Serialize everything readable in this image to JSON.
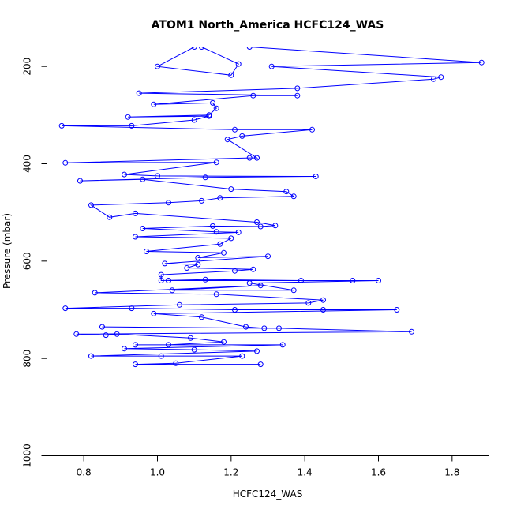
{
  "chart_data": {
    "type": "scatter",
    "title": "ATOM1 North_America HCFC124_WAS",
    "xlabel": "HCFC124_WAS",
    "ylabel": "Pressure (mbar)",
    "xlim": [
      0.7,
      1.9
    ],
    "ylim": [
      1000,
      160
    ],
    "y_reversed": true,
    "x_ticks": [
      0.8,
      1.0,
      1.2,
      1.4,
      1.6,
      1.8
    ],
    "x_tick_labels": [
      "0.8",
      "1.0",
      "1.2",
      "1.4",
      "1.6",
      "1.8"
    ],
    "y_ticks": [
      200,
      400,
      600,
      800,
      1000
    ],
    "y_tick_labels": [
      "200",
      "400",
      "600",
      "800",
      "1000"
    ],
    "grid": false,
    "color": "#0000ff",
    "series": [
      {
        "points": [
          [
            1.1,
            160
          ],
          [
            1.0,
            200
          ],
          [
            1.2,
            218
          ],
          [
            1.22,
            195
          ],
          [
            1.12,
            160
          ],
          [
            1.25,
            160
          ],
          [
            1.88,
            192
          ],
          [
            1.31,
            200
          ],
          [
            1.77,
            222
          ],
          [
            1.75,
            226
          ],
          [
            1.38,
            245
          ],
          [
            0.95,
            255
          ],
          [
            1.38,
            260
          ],
          [
            1.26,
            260
          ],
          [
            0.99,
            278
          ],
          [
            1.15,
            275
          ],
          [
            1.16,
            286
          ],
          [
            1.14,
            300
          ],
          [
            0.92,
            304
          ],
          [
            1.14,
            302
          ],
          [
            1.1,
            310
          ],
          [
            0.93,
            322
          ],
          [
            0.74,
            322
          ],
          [
            1.21,
            330
          ],
          [
            1.42,
            330
          ],
          [
            1.23,
            343
          ],
          [
            1.19,
            350
          ],
          [
            1.27,
            388
          ],
          [
            1.25,
            388
          ],
          [
            0.75,
            398
          ],
          [
            1.16,
            397
          ],
          [
            0.91,
            422
          ],
          [
            1.0,
            425
          ],
          [
            1.43,
            426
          ],
          [
            1.13,
            428
          ],
          [
            0.79,
            435
          ],
          [
            0.96,
            432
          ],
          [
            1.2,
            452
          ],
          [
            1.35,
            457
          ],
          [
            1.37,
            467
          ],
          [
            1.17,
            470
          ],
          [
            1.12,
            476
          ],
          [
            1.03,
            480
          ],
          [
            0.82,
            485
          ],
          [
            0.87,
            510
          ],
          [
            0.94,
            502
          ],
          [
            1.27,
            520
          ],
          [
            1.32,
            527
          ],
          [
            1.28,
            529
          ],
          [
            1.15,
            528
          ],
          [
            0.96,
            533
          ],
          [
            1.16,
            540
          ],
          [
            1.22,
            541
          ],
          [
            0.94,
            550
          ],
          [
            1.2,
            553
          ],
          [
            1.17,
            565
          ],
          [
            0.97,
            580
          ],
          [
            1.18,
            583
          ],
          [
            1.11,
            593
          ],
          [
            1.3,
            590
          ],
          [
            1.02,
            605
          ],
          [
            1.11,
            607
          ],
          [
            1.08,
            614
          ],
          [
            1.26,
            617
          ],
          [
            1.21,
            620
          ],
          [
            1.01,
            628
          ],
          [
            1.01,
            640
          ],
          [
            1.13,
            638
          ],
          [
            1.39,
            640
          ],
          [
            1.03,
            640
          ],
          [
            1.53,
            640
          ],
          [
            1.6,
            640
          ],
          [
            1.25,
            645
          ],
          [
            1.37,
            660
          ],
          [
            1.04,
            660
          ],
          [
            1.28,
            650
          ],
          [
            0.83,
            665
          ],
          [
            1.16,
            668
          ],
          [
            1.45,
            680
          ],
          [
            1.41,
            686
          ],
          [
            1.06,
            690
          ],
          [
            0.75,
            697
          ],
          [
            0.93,
            697
          ],
          [
            1.21,
            700
          ],
          [
            1.45,
            700
          ],
          [
            1.65,
            700
          ],
          [
            0.99,
            708
          ],
          [
            1.12,
            715
          ],
          [
            1.24,
            735
          ],
          [
            1.29,
            738
          ],
          [
            0.85,
            735
          ],
          [
            1.33,
            738
          ],
          [
            1.69,
            745
          ],
          [
            0.78,
            750
          ],
          [
            0.86,
            752
          ],
          [
            0.89,
            750
          ],
          [
            1.09,
            758
          ],
          [
            1.18,
            766
          ],
          [
            1.03,
            772
          ],
          [
            0.94,
            772
          ],
          [
            1.34,
            772
          ],
          [
            0.91,
            780
          ],
          [
            1.1,
            782
          ],
          [
            1.27,
            785
          ],
          [
            0.82,
            795
          ],
          [
            1.01,
            795
          ],
          [
            1.23,
            795
          ],
          [
            1.05,
            810
          ],
          [
            0.94,
            812
          ],
          [
            1.28,
            812
          ]
        ]
      }
    ]
  }
}
